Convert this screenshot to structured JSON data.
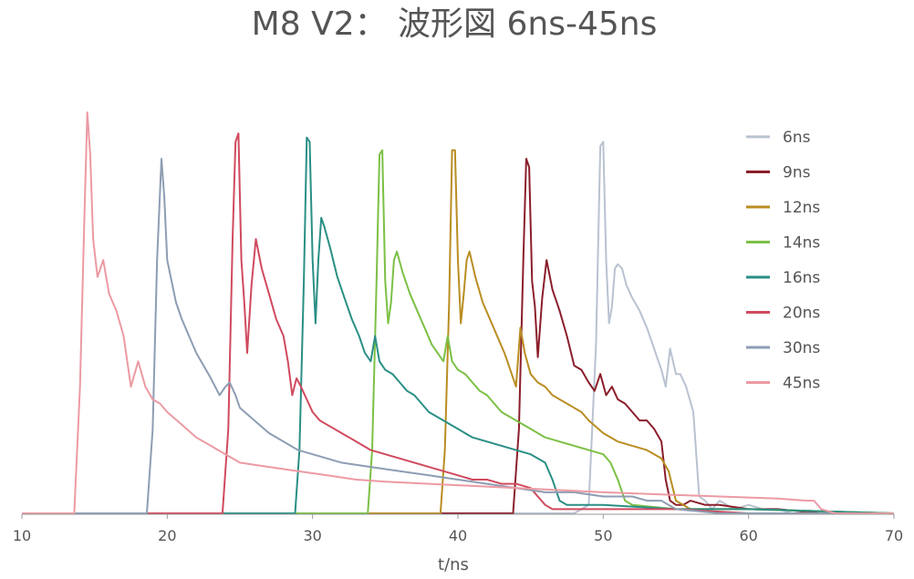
{
  "chart_data": {
    "type": "line",
    "title": "M8 V2： 波形図 6ns-45ns",
    "xlabel": "t/ns",
    "ylabel": "",
    "xlim": [
      10,
      70
    ],
    "ylim": [
      0,
      1.0
    ],
    "xticks": [
      "10",
      "20",
      "30",
      "40",
      "50",
      "60",
      "70"
    ],
    "grid": false,
    "legend_position": "right",
    "series": [
      {
        "name": "6ns",
        "color": "#b9c2d0",
        "x": [
          10,
          48,
          49.0,
          49.5,
          49.8,
          50.0,
          50.2,
          50.4,
          50.6,
          50.8,
          51.0,
          51.3,
          51.6,
          52.0,
          52.5,
          53.0,
          53.3,
          53.6,
          54.0,
          54.3,
          54.6,
          55.0,
          55.3,
          55.7,
          56.2,
          56.6,
          57.0,
          57.5,
          58,
          58.5,
          59,
          60,
          61,
          62,
          63,
          65,
          70
        ],
        "values": [
          0.0,
          0.0,
          0.02,
          0.4,
          0.87,
          0.88,
          0.6,
          0.45,
          0.49,
          0.58,
          0.59,
          0.58,
          0.54,
          0.51,
          0.48,
          0.44,
          0.41,
          0.38,
          0.34,
          0.3,
          0.39,
          0.33,
          0.33,
          0.3,
          0.24,
          0.04,
          0.03,
          0.01,
          0.03,
          0.02,
          0.01,
          0.02,
          0.01,
          0.01,
          0.0,
          0.0,
          0.0
        ]
      },
      {
        "name": "9ns",
        "color": "#8b1e2b",
        "x": [
          10,
          43.8,
          44.2,
          44.5,
          44.7,
          44.9,
          45.1,
          45.3,
          45.5,
          45.8,
          46.1,
          46.5,
          47.0,
          47.5,
          48.0,
          48.5,
          49.0,
          49.4,
          49.8,
          50.2,
          50.6,
          51.0,
          51.5,
          52.0,
          52.5,
          53.0,
          53.5,
          54.0,
          54.3,
          54.6,
          55.0,
          55.5,
          56,
          57,
          58,
          60,
          62,
          65,
          70
        ],
        "values": [
          0.0,
          0.0,
          0.2,
          0.6,
          0.84,
          0.82,
          0.55,
          0.49,
          0.37,
          0.51,
          0.6,
          0.53,
          0.48,
          0.42,
          0.35,
          0.34,
          0.31,
          0.29,
          0.33,
          0.28,
          0.3,
          0.27,
          0.26,
          0.24,
          0.22,
          0.22,
          0.2,
          0.17,
          0.08,
          0.03,
          0.02,
          0.02,
          0.03,
          0.02,
          0.02,
          0.01,
          0.01,
          0.0,
          0.0
        ]
      },
      {
        "name": "12ns",
        "color": "#b98d22",
        "x": [
          10,
          38.8,
          39.1,
          39.4,
          39.6,
          39.8,
          40.0,
          40.2,
          40.4,
          40.6,
          40.8,
          41.2,
          41.7,
          42.2,
          42.7,
          43.2,
          43.6,
          44.0,
          44.3,
          44.6,
          45.0,
          45.5,
          46.0,
          46.5,
          47.0,
          47.5,
          48.0,
          48.5,
          49.0,
          50.0,
          51.0,
          52.0,
          53.0,
          54.0,
          54.5,
          55.0,
          56,
          58,
          60,
          70
        ],
        "values": [
          0.0,
          0.0,
          0.15,
          0.5,
          0.86,
          0.86,
          0.6,
          0.45,
          0.52,
          0.6,
          0.62,
          0.56,
          0.5,
          0.46,
          0.42,
          0.38,
          0.34,
          0.3,
          0.44,
          0.38,
          0.33,
          0.31,
          0.3,
          0.28,
          0.27,
          0.26,
          0.25,
          0.24,
          0.22,
          0.19,
          0.17,
          0.16,
          0.15,
          0.13,
          0.1,
          0.03,
          0.01,
          0.01,
          0.01,
          0.0
        ]
      },
      {
        "name": "14ns",
        "color": "#7cc045",
        "x": [
          10,
          33.8,
          34.1,
          34.4,
          34.6,
          34.8,
          35.0,
          35.2,
          35.4,
          35.6,
          35.8,
          36.2,
          36.7,
          37.2,
          37.7,
          38.2,
          38.6,
          39.0,
          39.3,
          39.6,
          40.0,
          40.5,
          41.0,
          41.5,
          42.0,
          42.5,
          43.0,
          44.0,
          45.0,
          46.0,
          47.0,
          48.0,
          49.0,
          50.0,
          50.5,
          51.0,
          51.5,
          52,
          55,
          60,
          70
        ],
        "values": [
          0.0,
          0.0,
          0.15,
          0.55,
          0.85,
          0.86,
          0.55,
          0.45,
          0.5,
          0.6,
          0.62,
          0.57,
          0.52,
          0.48,
          0.44,
          0.4,
          0.38,
          0.36,
          0.42,
          0.36,
          0.34,
          0.33,
          0.31,
          0.29,
          0.28,
          0.26,
          0.24,
          0.22,
          0.2,
          0.18,
          0.17,
          0.16,
          0.15,
          0.14,
          0.12,
          0.08,
          0.03,
          0.02,
          0.01,
          0.01,
          0.0
        ]
      },
      {
        "name": "16ns",
        "color": "#2a8f85",
        "x": [
          10,
          28.8,
          29.1,
          29.4,
          29.6,
          29.8,
          30.0,
          30.2,
          30.4,
          30.6,
          30.8,
          31.2,
          31.7,
          32.2,
          32.7,
          33.2,
          33.6,
          34.0,
          34.3,
          34.6,
          35.0,
          35.5,
          36.0,
          36.5,
          37.0,
          37.5,
          38.0,
          39.0,
          40.0,
          41.0,
          42.0,
          43.0,
          44.0,
          45.0,
          46.0,
          46.5,
          47.0,
          47.5,
          48,
          50,
          55,
          60,
          70
        ],
        "values": [
          0.0,
          0.0,
          0.15,
          0.55,
          0.89,
          0.88,
          0.6,
          0.45,
          0.6,
          0.7,
          0.68,
          0.63,
          0.56,
          0.51,
          0.46,
          0.42,
          0.38,
          0.36,
          0.42,
          0.36,
          0.34,
          0.33,
          0.31,
          0.29,
          0.28,
          0.26,
          0.24,
          0.22,
          0.2,
          0.18,
          0.17,
          0.16,
          0.15,
          0.14,
          0.12,
          0.08,
          0.03,
          0.02,
          0.02,
          0.02,
          0.01,
          0.01,
          0.0
        ]
      },
      {
        "name": "20ns",
        "color": "#d04a5e",
        "x": [
          10,
          23.8,
          24.2,
          24.5,
          24.7,
          24.9,
          25.1,
          25.3,
          25.5,
          25.8,
          26.1,
          26.5,
          27.0,
          27.5,
          28.0,
          28.3,
          28.6,
          28.9,
          29.2,
          29.6,
          30.0,
          30.5,
          31.0,
          32.0,
          33.0,
          34.0,
          35.0,
          36.0,
          37.0,
          38.0,
          39.0,
          40.0,
          41.0,
          42.0,
          43.0,
          44.0,
          45.0,
          45.5,
          46.0,
          46.5,
          47,
          50,
          55,
          60,
          70
        ],
        "values": [
          0.0,
          0.0,
          0.2,
          0.65,
          0.88,
          0.9,
          0.6,
          0.5,
          0.38,
          0.54,
          0.65,
          0.58,
          0.52,
          0.46,
          0.42,
          0.36,
          0.28,
          0.32,
          0.3,
          0.27,
          0.24,
          0.22,
          0.21,
          0.19,
          0.17,
          0.15,
          0.14,
          0.13,
          0.12,
          0.11,
          0.1,
          0.09,
          0.08,
          0.08,
          0.07,
          0.07,
          0.06,
          0.04,
          0.02,
          0.01,
          0.01,
          0.01,
          0.01,
          0.0,
          0.0
        ]
      },
      {
        "name": "30ns",
        "color": "#8d9db3",
        "x": [
          10,
          18.6,
          19.0,
          19.3,
          19.6,
          19.8,
          20.0,
          20.3,
          20.6,
          21.0,
          21.5,
          22.0,
          22.5,
          23.0,
          23.3,
          23.6,
          24.0,
          24.3,
          24.7,
          25.0,
          26.0,
          27.0,
          28.0,
          29.0,
          30.0,
          32.0,
          34.0,
          36.0,
          38.0,
          40.0,
          42.0,
          44.0,
          46.0,
          48.0,
          50.0,
          52.0,
          53.0,
          54.0,
          54.5,
          55,
          58,
          62,
          70
        ],
        "values": [
          0.0,
          0.0,
          0.2,
          0.6,
          0.84,
          0.75,
          0.6,
          0.55,
          0.5,
          0.46,
          0.42,
          0.38,
          0.35,
          0.32,
          0.3,
          0.28,
          0.3,
          0.31,
          0.28,
          0.25,
          0.22,
          0.19,
          0.17,
          0.15,
          0.14,
          0.12,
          0.11,
          0.1,
          0.09,
          0.08,
          0.07,
          0.06,
          0.05,
          0.05,
          0.04,
          0.04,
          0.03,
          0.03,
          0.02,
          0.01,
          0.0,
          0.0,
          0.0
        ]
      },
      {
        "name": "45ns",
        "color": "#ec9aa3",
        "x": [
          10,
          13.6,
          14.0,
          14.3,
          14.5,
          14.7,
          14.9,
          15.2,
          15.6,
          16.0,
          16.5,
          17.0,
          17.5,
          18.0,
          18.5,
          19.0,
          19.5,
          20.0,
          21.0,
          22.0,
          23.0,
          24.0,
          25.0,
          27.0,
          29.0,
          31.0,
          33.0,
          35.0,
          38.0,
          41.0,
          44.0,
          47.0,
          50.0,
          54.0,
          58.0,
          62.0,
          64.0,
          64.5,
          65.0,
          66,
          70
        ],
        "values": [
          0.0,
          0.0,
          0.3,
          0.7,
          0.95,
          0.85,
          0.65,
          0.56,
          0.6,
          0.52,
          0.48,
          0.42,
          0.3,
          0.36,
          0.3,
          0.27,
          0.26,
          0.24,
          0.21,
          0.18,
          0.16,
          0.14,
          0.12,
          0.11,
          0.1,
          0.09,
          0.08,
          0.075,
          0.07,
          0.065,
          0.06,
          0.055,
          0.05,
          0.045,
          0.04,
          0.035,
          0.03,
          0.03,
          0.01,
          0.0,
          0.0
        ]
      }
    ]
  }
}
